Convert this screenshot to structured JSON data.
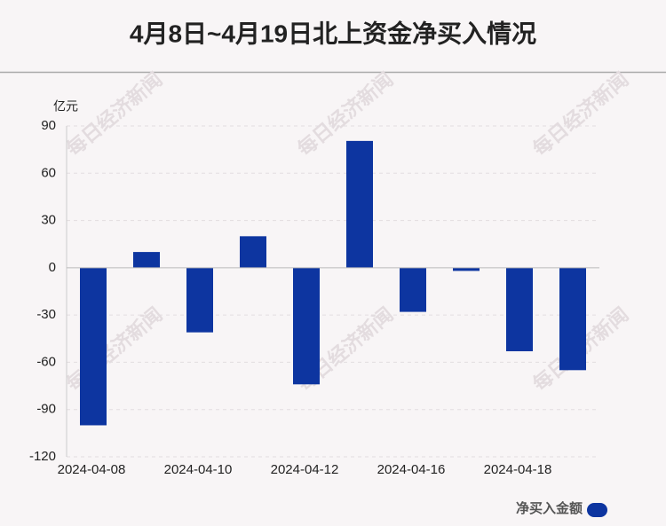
{
  "chart_data": {
    "type": "bar",
    "title": "4月8日~4月19日北上资金净买入情况",
    "y_axis_label": "亿元",
    "watermark": "每日经济新闻",
    "categories": [
      "2024-04-08",
      null,
      "2024-04-10",
      null,
      "2024-04-12",
      null,
      "2024-04-16",
      null,
      "2024-04-18",
      null
    ],
    "series": [
      {
        "name": "净买入金额",
        "color": "#0d35a0",
        "values": [
          -100,
          10,
          -41,
          20,
          -74,
          80.5,
          -28,
          -2,
          -53,
          -65
        ]
      }
    ],
    "ylim": [
      -120,
      90
    ],
    "yticks": [
      -120,
      -90,
      -60,
      -30,
      0,
      30,
      60,
      90
    ],
    "grid": true
  }
}
